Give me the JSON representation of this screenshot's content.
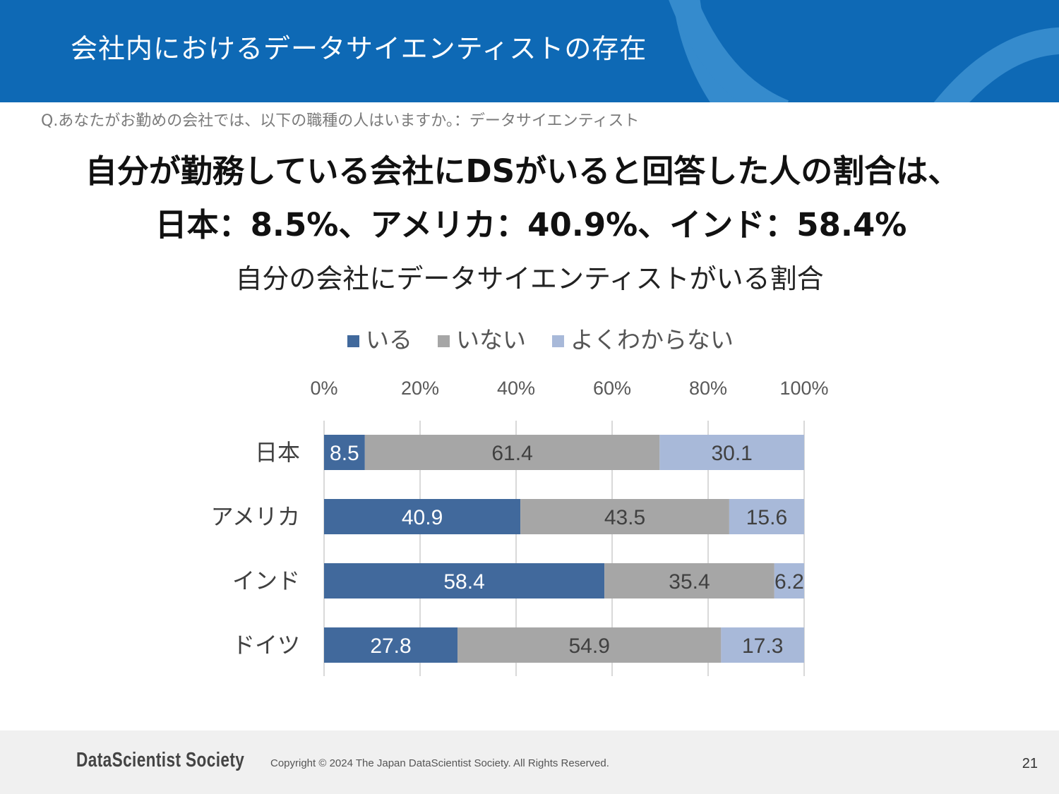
{
  "header": {
    "title": "会社内におけるデータサイエンティストの存在",
    "colors": {
      "background": "#0e69b5",
      "decoration": "#3a8fd0"
    }
  },
  "question": "Q.あなたがお勤めの会社では、以下の職種の人はいますか。：データサイエンティスト",
  "headline": {
    "line1": "自分が勤務している会社にDSがいると回答した人の割合は、",
    "line2": "日本：8.5%、アメリカ：40.9%、インド：58.4%"
  },
  "chart_data": {
    "type": "bar",
    "orientation": "horizontal",
    "stacked": true,
    "title": "自分の会社にデータサイエンティストがいる割合",
    "categories": [
      "日本",
      "アメリカ",
      "インド",
      "ドイツ"
    ],
    "series": [
      {
        "name": "いる",
        "values": [
          8.5,
          40.9,
          58.4,
          27.8
        ],
        "color": "#41699c"
      },
      {
        "name": "いない",
        "values": [
          61.4,
          43.5,
          35.4,
          54.9
        ],
        "color": "#a6a6a6"
      },
      {
        "name": "よくわからない",
        "values": [
          30.1,
          15.6,
          6.2,
          17.3
        ],
        "color": "#a8b9d9"
      }
    ],
    "x_ticks": [
      "0%",
      "20%",
      "40%",
      "60%",
      "80%",
      "100%"
    ],
    "xlim": [
      0,
      100
    ],
    "axis_position": "top",
    "grid": true,
    "legend_position": "top"
  },
  "footer": {
    "logo": "DataScientist Society",
    "copyright": "Copyright © 2024 The Japan DataScientist Society. All Rights Reserved.",
    "page_number": "21"
  }
}
